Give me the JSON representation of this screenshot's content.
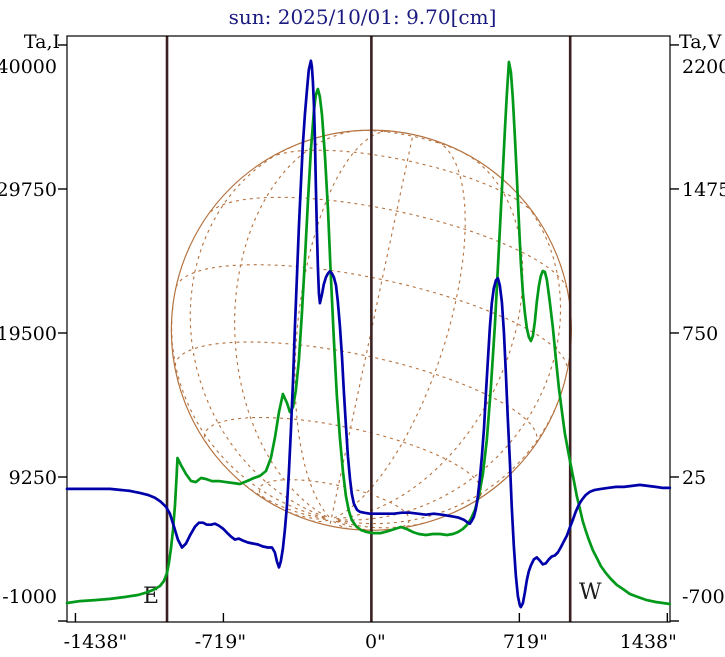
{
  "chart_data": {
    "type": "line",
    "title": "sun: 2025/10/01: 9.70[cm]",
    "background_color": "#ffffff",
    "title_color": "#1a1a80",
    "x_axis": {
      "unit": "arcsec",
      "tick_values": [
        -1438,
        -719,
        0,
        719,
        1438
      ],
      "tick_labels": [
        "-1438\"",
        "-719\"",
        "0\"",
        "719\"",
        "1438\""
      ],
      "range": [
        -1479,
        1451
      ]
    },
    "left_axis": {
      "label": "Ta,I",
      "tick_values": [
        40000,
        29750,
        19500,
        9250,
        -1000
      ],
      "range": [
        -1071,
        40640
      ]
    },
    "right_axis": {
      "label": "Ta,V",
      "tick_values": [
        2200,
        1475,
        750,
        25,
        -700
      ],
      "range": [
        -705,
        2245
      ]
    },
    "limb_markers": {
      "east": {
        "label": "E",
        "arcsec": -993
      },
      "west": {
        "label": "W",
        "arcsec": 966
      },
      "center_arcsec": 0,
      "line_color": "#3a2020"
    },
    "solar_disk": {
      "center_arcsec": 0,
      "center_value_left": 19700,
      "radius_arcsec": 972,
      "color": "#b5723f",
      "lat_lines_deg": [
        -67.5,
        -45,
        -22.5,
        0,
        22.5,
        45,
        67.5
      ],
      "lon_step_deg": 22.5,
      "b0_deg": -15,
      "p_deg": 12
    },
    "series": [
      {
        "name": "Ta,I",
        "axis": "left",
        "color": "#009919",
        "points": [
          [
            -1479,
            280
          ],
          [
            -1416,
            420
          ],
          [
            -1343,
            490
          ],
          [
            -1270,
            570
          ],
          [
            -1198,
            710
          ],
          [
            -1134,
            850
          ],
          [
            -1086,
            1060
          ],
          [
            -1052,
            1280
          ],
          [
            -1027,
            1490
          ],
          [
            -1008,
            1850
          ],
          [
            -993,
            2420
          ],
          [
            -984,
            3130
          ],
          [
            -974,
            4120
          ],
          [
            -964,
            5480
          ],
          [
            -954,
            7260
          ],
          [
            -947,
            9180
          ],
          [
            -942,
            10600
          ],
          [
            -925,
            10100
          ],
          [
            -901,
            9460
          ],
          [
            -877,
            8970
          ],
          [
            -853,
            8890
          ],
          [
            -828,
            9180
          ],
          [
            -804,
            9110
          ],
          [
            -775,
            8960
          ],
          [
            -741,
            8960
          ],
          [
            -707,
            8890
          ],
          [
            -673,
            8820
          ],
          [
            -639,
            8750
          ],
          [
            -605,
            8960
          ],
          [
            -571,
            9180
          ],
          [
            -542,
            9320
          ],
          [
            -512,
            9680
          ],
          [
            -488,
            10600
          ],
          [
            -469,
            12030
          ],
          [
            -449,
            13880
          ],
          [
            -430,
            15160
          ],
          [
            -410,
            14520
          ],
          [
            -396,
            13880
          ],
          [
            -381,
            14230
          ],
          [
            -367,
            15440
          ],
          [
            -352,
            17580
          ],
          [
            -338,
            20780
          ],
          [
            -323,
            24700
          ],
          [
            -308,
            28970
          ],
          [
            -294,
            32530
          ],
          [
            -279,
            35370
          ],
          [
            -270,
            36440
          ],
          [
            -260,
            36870
          ],
          [
            -250,
            36300
          ],
          [
            -240,
            35020
          ],
          [
            -226,
            32170
          ],
          [
            -211,
            28260
          ],
          [
            -197,
            23630
          ],
          [
            -182,
            19000
          ],
          [
            -168,
            15090
          ],
          [
            -153,
            12030
          ],
          [
            -138,
            9610
          ],
          [
            -124,
            7900
          ],
          [
            -109,
            6830
          ],
          [
            -95,
            6190
          ],
          [
            -75,
            5760
          ],
          [
            -51,
            5480
          ],
          [
            -22,
            5330
          ],
          [
            7,
            5260
          ],
          [
            46,
            5260
          ],
          [
            85,
            5410
          ],
          [
            114,
            5550
          ],
          [
            143,
            5690
          ],
          [
            172,
            5550
          ],
          [
            202,
            5330
          ],
          [
            231,
            5190
          ],
          [
            265,
            5120
          ],
          [
            299,
            5190
          ],
          [
            333,
            5190
          ],
          [
            367,
            5120
          ],
          [
            396,
            5190
          ],
          [
            420,
            5330
          ],
          [
            444,
            5550
          ],
          [
            464,
            5830
          ],
          [
            483,
            6260
          ],
          [
            503,
            6900
          ],
          [
            522,
            7900
          ],
          [
            542,
            9460
          ],
          [
            561,
            11880
          ],
          [
            580,
            15440
          ],
          [
            600,
            20070
          ],
          [
            619,
            25410
          ],
          [
            634,
            29680
          ],
          [
            649,
            33950
          ],
          [
            658,
            36440
          ],
          [
            668,
            38790
          ],
          [
            678,
            38080
          ],
          [
            687,
            36230
          ],
          [
            697,
            33590
          ],
          [
            707,
            30530
          ],
          [
            717,
            27400
          ],
          [
            726,
            24550
          ],
          [
            736,
            22350
          ],
          [
            746,
            20920
          ],
          [
            755,
            19860
          ],
          [
            765,
            19220
          ],
          [
            775,
            18930
          ],
          [
            785,
            19290
          ],
          [
            794,
            20280
          ],
          [
            804,
            21710
          ],
          [
            814,
            22850
          ],
          [
            823,
            23560
          ],
          [
            833,
            23910
          ],
          [
            843,
            23840
          ],
          [
            853,
            23270
          ],
          [
            867,
            21710
          ],
          [
            882,
            19860
          ],
          [
            896,
            17720
          ],
          [
            911,
            15580
          ],
          [
            926,
            13880
          ],
          [
            940,
            12380
          ],
          [
            955,
            11170
          ],
          [
            969,
            10100
          ],
          [
            984,
            8970
          ],
          [
            998,
            7900
          ],
          [
            1013,
            6970
          ],
          [
            1027,
            6120
          ],
          [
            1042,
            5410
          ],
          [
            1057,
            4770
          ],
          [
            1076,
            4050
          ],
          [
            1096,
            3480
          ],
          [
            1115,
            2910
          ],
          [
            1139,
            2420
          ],
          [
            1164,
            1990
          ],
          [
            1193,
            1560
          ],
          [
            1222,
            1280
          ],
          [
            1256,
            920
          ],
          [
            1295,
            710
          ],
          [
            1338,
            490
          ],
          [
            1382,
            350
          ],
          [
            1416,
            280
          ],
          [
            1450,
            210
          ]
        ]
      },
      {
        "name": "Ta,V",
        "axis": "right",
        "color": "#0000aa",
        "points": [
          [
            -1479,
            -35
          ],
          [
            -1406,
            -35
          ],
          [
            -1333,
            -35
          ],
          [
            -1270,
            -35
          ],
          [
            -1222,
            -40
          ],
          [
            -1173,
            -45
          ],
          [
            -1125,
            -55
          ],
          [
            -1086,
            -65
          ],
          [
            -1052,
            -80
          ],
          [
            -1023,
            -100
          ],
          [
            -998,
            -125
          ],
          [
            -979,
            -160
          ],
          [
            -959,
            -225
          ],
          [
            -940,
            -290
          ],
          [
            -920,
            -330
          ],
          [
            -901,
            -310
          ],
          [
            -882,
            -270
          ],
          [
            -857,
            -225
          ],
          [
            -838,
            -205
          ],
          [
            -818,
            -205
          ],
          [
            -799,
            -215
          ],
          [
            -780,
            -215
          ],
          [
            -760,
            -210
          ],
          [
            -741,
            -220
          ],
          [
            -721,
            -235
          ],
          [
            -702,
            -255
          ],
          [
            -682,
            -275
          ],
          [
            -663,
            -290
          ],
          [
            -644,
            -285
          ],
          [
            -624,
            -295
          ],
          [
            -600,
            -305
          ],
          [
            -576,
            -310
          ],
          [
            -551,
            -315
          ],
          [
            -527,
            -325
          ],
          [
            -503,
            -330
          ],
          [
            -483,
            -330
          ],
          [
            -469,
            -355
          ],
          [
            -459,
            -400
          ],
          [
            -449,
            -430
          ],
          [
            -440,
            -400
          ],
          [
            -430,
            -335
          ],
          [
            -420,
            -240
          ],
          [
            -410,
            -115
          ],
          [
            -401,
            50
          ],
          [
            -391,
            260
          ],
          [
            -381,
            505
          ],
          [
            -372,
            765
          ],
          [
            -362,
            1030
          ],
          [
            -352,
            1285
          ],
          [
            -342,
            1510
          ],
          [
            -333,
            1695
          ],
          [
            -323,
            1850
          ],
          [
            -313,
            1975
          ],
          [
            -304,
            2075
          ],
          [
            -294,
            2120
          ],
          [
            -289,
            2090
          ],
          [
            -284,
            2015
          ],
          [
            -279,
            1890
          ],
          [
            -274,
            1710
          ],
          [
            -270,
            1505
          ],
          [
            -265,
            1285
          ],
          [
            -260,
            1080
          ],
          [
            -255,
            950
          ],
          [
            -250,
            900
          ],
          [
            -240,
            945
          ],
          [
            -231,
            995
          ],
          [
            -221,
            1030
          ],
          [
            -211,
            1050
          ],
          [
            -202,
            1060
          ],
          [
            -192,
            1050
          ],
          [
            -182,
            1030
          ],
          [
            -172,
            990
          ],
          [
            -163,
            910
          ],
          [
            -153,
            785
          ],
          [
            -143,
            630
          ],
          [
            -134,
            460
          ],
          [
            -124,
            285
          ],
          [
            -114,
            130
          ],
          [
            -104,
            15
          ],
          [
            -95,
            -60
          ],
          [
            -85,
            -110
          ],
          [
            -70,
            -140
          ],
          [
            -56,
            -150
          ],
          [
            -36,
            -155
          ],
          [
            -7,
            -160
          ],
          [
            32,
            -160
          ],
          [
            70,
            -160
          ],
          [
            109,
            -160
          ],
          [
            148,
            -155
          ],
          [
            187,
            -155
          ],
          [
            226,
            -160
          ],
          [
            265,
            -165
          ],
          [
            304,
            -160
          ],
          [
            342,
            -165
          ],
          [
            372,
            -170
          ],
          [
            401,
            -175
          ],
          [
            425,
            -180
          ],
          [
            449,
            -190
          ],
          [
            469,
            -205
          ],
          [
            478,
            -210
          ],
          [
            488,
            -195
          ],
          [
            498,
            -175
          ],
          [
            508,
            -135
          ],
          [
            517,
            -75
          ],
          [
            527,
            15
          ],
          [
            537,
            130
          ],
          [
            547,
            270
          ],
          [
            556,
            435
          ],
          [
            566,
            615
          ],
          [
            576,
            780
          ],
          [
            585,
            900
          ],
          [
            595,
            975
          ],
          [
            605,
            1015
          ],
          [
            615,
            1025
          ],
          [
            624,
            990
          ],
          [
            634,
            905
          ],
          [
            644,
            755
          ],
          [
            653,
            555
          ],
          [
            663,
            320
          ],
          [
            673,
            100
          ],
          [
            682,
            -120
          ],
          [
            692,
            -320
          ],
          [
            702,
            -475
          ],
          [
            712,
            -575
          ],
          [
            721,
            -620
          ],
          [
            726,
            -630
          ],
          [
            736,
            -610
          ],
          [
            746,
            -555
          ],
          [
            755,
            -495
          ],
          [
            765,
            -450
          ],
          [
            775,
            -420
          ],
          [
            789,
            -390
          ],
          [
            804,
            -380
          ],
          [
            818,
            -395
          ],
          [
            833,
            -415
          ],
          [
            847,
            -410
          ],
          [
            862,
            -390
          ],
          [
            877,
            -375
          ],
          [
            891,
            -370
          ],
          [
            906,
            -355
          ],
          [
            920,
            -330
          ],
          [
            935,
            -300
          ],
          [
            950,
            -270
          ],
          [
            964,
            -230
          ],
          [
            979,
            -190
          ],
          [
            993,
            -150
          ],
          [
            1008,
            -115
          ],
          [
            1023,
            -90
          ],
          [
            1042,
            -65
          ],
          [
            1061,
            -50
          ],
          [
            1086,
            -40
          ],
          [
            1115,
            -35
          ],
          [
            1149,
            -30
          ],
          [
            1188,
            -25
          ],
          [
            1227,
            -25
          ],
          [
            1266,
            -20
          ],
          [
            1304,
            -15
          ],
          [
            1343,
            -20
          ],
          [
            1382,
            -25
          ],
          [
            1416,
            -30
          ],
          [
            1450,
            -30
          ]
        ]
      }
    ]
  }
}
